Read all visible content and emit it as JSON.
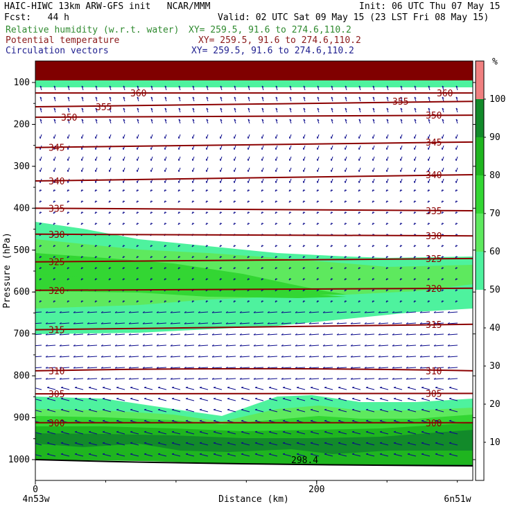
{
  "header": {
    "model_line": "HAIC-HIWC 13km ARW-GFS init   NCAR/MMM",
    "init_line": "Init: 06 UTC Thu 07 May 15",
    "fcst_line": "Fcst:   44 h",
    "valid_line": "Valid: 02 UTC Sat 09 May 15 (23 LST Fri 08 May 15)",
    "fields": [
      {
        "label": "Relative humidity (w.r.t. water)",
        "xy": "XY= 259.5, 91.6 to 274.6,110.2",
        "color": "#2f8a2f"
      },
      {
        "label": "Potential temperature",
        "xy": "XY= 259.5, 91.6 to 274.6,110.2",
        "color": "#8b1a1a"
      },
      {
        "label": "Circulation vectors",
        "xy": "XY= 259.5, 91.6 to 274.6,110.2",
        "color": "#1f1f8f"
      }
    ]
  },
  "chart_data": {
    "type": "heatmap",
    "xlabel": "Distance (km)",
    "ylabel": "Pressure (hPa)",
    "x_ticks": [
      "0",
      "200"
    ],
    "x_tick_values": [
      0,
      200
    ],
    "xlim": [
      0,
      311
    ],
    "y_ticks": [
      100,
      200,
      300,
      400,
      500,
      600,
      700,
      800,
      900,
      1000
    ],
    "ylim": [
      1050,
      60
    ],
    "endpoints": {
      "left": "4n53w",
      "right": "6n51w"
    },
    "theta_isentropes_K": [
      {
        "label": "360",
        "left_p": 125,
        "right_p": 125
      },
      {
        "label": "355",
        "left_p": 158,
        "right_p": 145
      },
      {
        "label": "350",
        "left_p": 183,
        "right_p": 178
      },
      {
        "label": "345",
        "left_p": 255,
        "right_p": 242
      },
      {
        "label": "340",
        "left_p": 335,
        "right_p": 320
      },
      {
        "label": "335",
        "left_p": 400,
        "right_p": 406
      },
      {
        "label": "330",
        "left_p": 462,
        "right_p": 466
      },
      {
        "label": "325",
        "left_p": 528,
        "right_p": 520
      },
      {
        "label": "320",
        "left_p": 596,
        "right_p": 591
      },
      {
        "label": "315",
        "left_p": 690,
        "right_p": 677
      },
      {
        "label": "310",
        "left_p": 788,
        "right_p": 788
      },
      {
        "label": "305",
        "left_p": 843,
        "right_p": 842
      },
      {
        "label": "300",
        "left_p": 912,
        "right_p": 912
      }
    ],
    "surface_theta_label": "298.4",
    "rh_colorbar": {
      "unit": "%",
      "ticks": [
        10,
        20,
        30,
        40,
        50,
        60,
        70,
        80,
        90,
        100
      ],
      "bins": [
        {
          "from": 50,
          "to": 60,
          "color": "#4ef29e"
        },
        {
          "from": 60,
          "to": 70,
          "color": "#5ee95e"
        },
        {
          "from": 70,
          "to": 80,
          "color": "#33d633"
        },
        {
          "from": 80,
          "to": 90,
          "color": "#1fb51f"
        },
        {
          "from": 90,
          "to": 100,
          "color": "#128a2a"
        },
        {
          "from": 100,
          "to": 110,
          "color": "#f08080"
        }
      ]
    },
    "colors": {
      "theta": "#8b0000",
      "vectors": "#0a0a8c",
      "top_band": "#800000"
    }
  }
}
